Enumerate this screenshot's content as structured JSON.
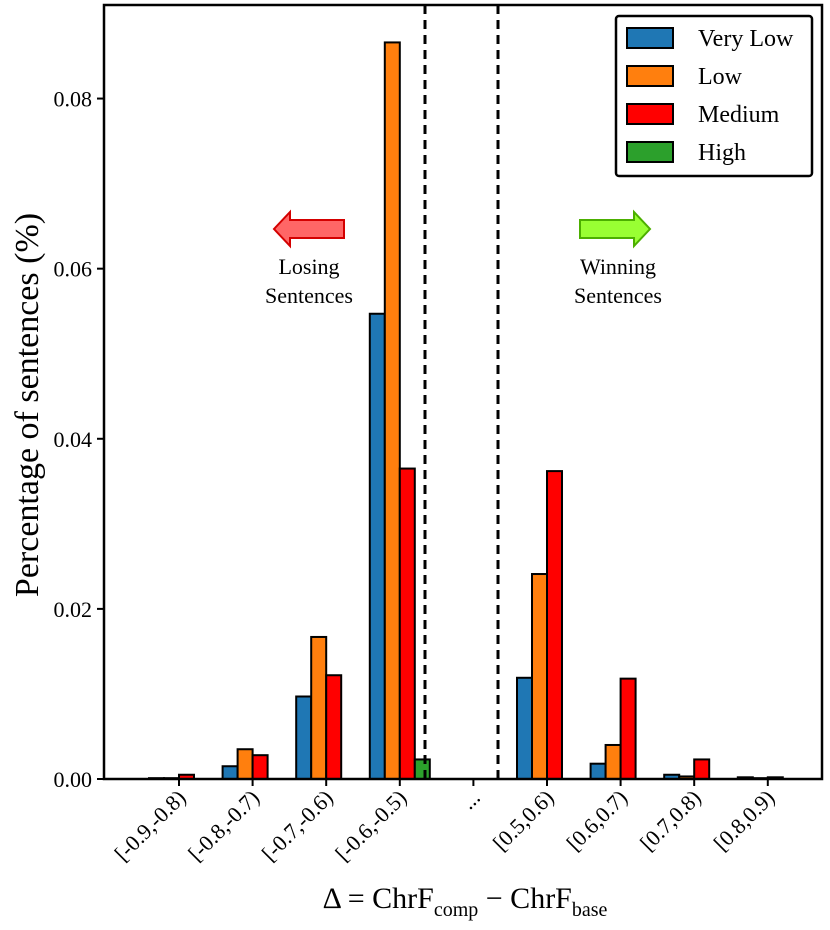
{
  "chart_data": {
    "type": "bar",
    "categories": [
      "[-0.9,-0.8)",
      "[-0.8,-0.7)",
      "[-0.7,-0.6)",
      "[-0.6,-0.5)",
      "...",
      "[0.5,0.6)",
      "[0.6,0.7)",
      "[0.7,0.8)",
      "[0.8,0.9)"
    ],
    "series": [
      {
        "name": "Very Low",
        "color": "#1f77b4",
        "values": [
          0.0001,
          0.0015,
          0.0097,
          0.0547,
          0,
          0.0119,
          0.0018,
          0.0005,
          0.0002
        ]
      },
      {
        "name": "Low",
        "color": "#ff7f0e",
        "values": [
          0.0001,
          0.0035,
          0.0167,
          0.0866,
          0,
          0.0241,
          0.004,
          0.0003,
          0.0001
        ]
      },
      {
        "name": "Medium",
        "color": "#ff0000",
        "values": [
          0.0005,
          0.0028,
          0.0122,
          0.0365,
          0,
          0.0362,
          0.0118,
          0.0023,
          0.0002
        ]
      },
      {
        "name": "High",
        "color": "#2ca02c",
        "values": [
          0,
          0,
          0,
          0.0023,
          0,
          0,
          0,
          0,
          0
        ]
      }
    ],
    "ylabel": "Percentage of sentences (%)",
    "xlabel": {
      "main": "Δ = ChrF",
      "sub1": "comp",
      "mid": " − ChrF",
      "sub2": "base"
    },
    "ylim": [
      0,
      0.091
    ],
    "yticks": [
      "0.00",
      "0.02",
      "0.04",
      "0.06",
      "0.08"
    ],
    "ytick_values": [
      0,
      0.02,
      0.04,
      0.06,
      0.08
    ],
    "legend_position": "top-right",
    "annotations": {
      "losing": {
        "line1": "Losing",
        "line2": "Sentences",
        "arrow_color": "#ff6666",
        "arrow_edge": "#d40000"
      },
      "winning": {
        "line1": "Winning",
        "line2": "Sentences",
        "arrow_color": "#99ff33",
        "arrow_edge": "#4caf00"
      }
    }
  }
}
